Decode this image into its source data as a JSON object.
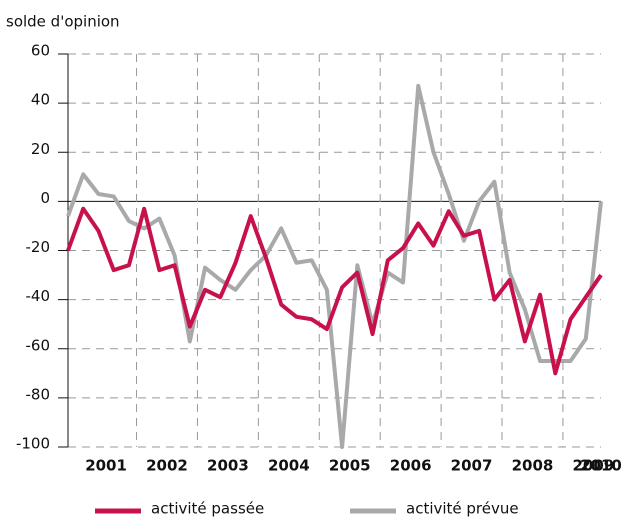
{
  "chart_data": {
    "type": "line",
    "y_label": "solde d'opinion",
    "x": [
      2000.875,
      2001.125,
      2001.375,
      2001.625,
      2001.875,
      2002.125,
      2002.375,
      2002.625,
      2002.875,
      2003.125,
      2003.375,
      2003.625,
      2003.875,
      2004.125,
      2004.375,
      2004.625,
      2004.875,
      2005.125,
      2005.375,
      2005.625,
      2005.875,
      2006.125,
      2006.375,
      2006.625,
      2006.875,
      2007.125,
      2007.375,
      2007.625,
      2007.875,
      2008.125,
      2008.375,
      2008.625,
      2008.875,
      2009.125,
      2009.375,
      2009.625
    ],
    "series": [
      {
        "name": "activité passée",
        "color": "#c8114a",
        "values": [
          -20,
          -3,
          -12,
          -28,
          -26,
          -3,
          -28,
          -26,
          -51,
          -36,
          -39,
          -25,
          -6,
          -23,
          -42,
          -47,
          -48,
          -52,
          -35,
          -29,
          -54,
          -24,
          -19,
          -9,
          -18,
          -4,
          -14,
          -12,
          -40,
          -32,
          -57,
          -38,
          -70,
          -48,
          -39,
          -30
        ]
      },
      {
        "name": "activité prévue",
        "color": "#a8a9ab",
        "values": [
          -6,
          11,
          3,
          2,
          -8,
          -11,
          -7,
          -22,
          -57,
          -27,
          -32,
          -36,
          -28,
          -22,
          -11,
          -25,
          -24,
          -36,
          -100,
          -26,
          -50,
          -29,
          -33,
          47,
          20,
          3,
          -16,
          0,
          8,
          -29,
          -44,
          -65,
          -65,
          -65,
          -56,
          0
        ]
      }
    ],
    "xlim": [
      2000.875,
      2009.625
    ],
    "xticks": [
      {
        "value": 2001.5,
        "label": "2001"
      },
      {
        "value": 2002.5,
        "label": "2002"
      },
      {
        "value": 2003.5,
        "label": "2003"
      },
      {
        "value": 2004.5,
        "label": "2004"
      },
      {
        "value": 2005.5,
        "label": "2005"
      },
      {
        "value": 2006.5,
        "label": "2006"
      },
      {
        "value": 2007.5,
        "label": "2007"
      },
      {
        "value": 2008.5,
        "label": "2008"
      },
      {
        "value": 2009.5,
        "label": "2009"
      },
      {
        "value": 2009.625,
        "label": "2010"
      }
    ],
    "xgrid": [
      2002,
      2003,
      2004,
      2005,
      2006,
      2007,
      2008,
      2009
    ],
    "ylim": [
      -100,
      60
    ],
    "yticks": [
      -100,
      -80,
      -60,
      -40,
      -20,
      0,
      20,
      40,
      60
    ],
    "grid": true
  }
}
